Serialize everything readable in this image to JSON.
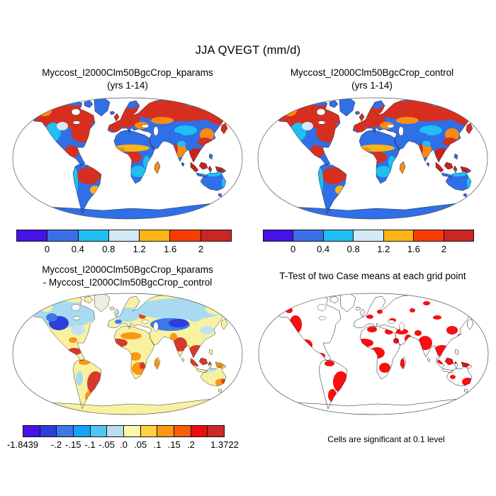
{
  "title": "JJA QVEGT (mm/d)",
  "panels": {
    "top_left": {
      "title_line1": "Myccost_I2000Clm50BgcCrop_kparams",
      "title_line2": "(yrs 1-14)"
    },
    "top_right": {
      "title_line1": "Myccost_I2000Clm50BgcCrop_control",
      "title_line2": "(yrs 1-14)"
    },
    "bottom_left": {
      "title_line1": "Myccost_I2000Clm50BgcCrop_kparams",
      "title_line2": "- Myccost_I2000Clm50BgcCrop_control"
    },
    "bottom_right": {
      "title": "T-Test of two Case means at each grid point",
      "caption": "Cells are significant at 0.1 level",
      "significant_color": "#FB0D10"
    }
  },
  "colorbars": {
    "top": {
      "colors": [
        "#4712E6",
        "#3A6FE6",
        "#20BFF2",
        "#D4E8F6",
        "#FDB515",
        "#FA3C00",
        "#CB2526"
      ],
      "tick_labels": [
        "0",
        "0.4",
        "0.8",
        "1.2",
        "1.6",
        "2"
      ],
      "tick_positions": [
        0.1429,
        0.2857,
        0.4286,
        0.5714,
        0.7143,
        0.8571
      ]
    },
    "diff": {
      "colors": [
        "#4712E6",
        "#2E3ED9",
        "#3C78E8",
        "#17A3F8",
        "#52C6F2",
        "#B9DCEF",
        "#FBF8AB",
        "#FDD440",
        "#FB9712",
        "#FA5D0C",
        "#E90E0E",
        "#CB2A2B"
      ],
      "tick_labels": [
        "-1.8439",
        "-.2",
        "-.15",
        "-.1",
        "-.05",
        ".0",
        ".05",
        ".1",
        ".15",
        ".2",
        "1.3722"
      ],
      "tick_positions": [
        0.0,
        0.1667,
        0.25,
        0.3333,
        0.4167,
        0.5,
        0.5833,
        0.6667,
        0.75,
        0.8333,
        1.0
      ]
    }
  },
  "chart_data": [
    {
      "type": "heatmap",
      "subtype": "global_map",
      "projection": "robinson",
      "title": "Myccost_I2000Clm50BgcCrop_kparams",
      "subtitle": "(yrs 1-14)",
      "variable": "QVEGT",
      "season": "JJA",
      "units": "mm/d",
      "levels": [
        0,
        0.4,
        0.8,
        1.2,
        1.6,
        2
      ],
      "palette": [
        "#4712E6",
        "#3A6FE6",
        "#20BFF2",
        "#D4E8F6",
        "#FDB515",
        "#FA3C00",
        "#CB2526"
      ],
      "legend_position": "bottom"
    },
    {
      "type": "heatmap",
      "subtype": "global_map",
      "projection": "robinson",
      "title": "Myccost_I2000Clm50BgcCrop_control",
      "subtitle": "(yrs 1-14)",
      "variable": "QVEGT",
      "season": "JJA",
      "units": "mm/d",
      "levels": [
        0,
        0.4,
        0.8,
        1.2,
        1.6,
        2
      ],
      "palette": [
        "#4712E6",
        "#3A6FE6",
        "#20BFF2",
        "#D4E8F6",
        "#FDB515",
        "#FA3C00",
        "#CB2526"
      ],
      "legend_position": "bottom"
    },
    {
      "type": "heatmap",
      "subtype": "global_map_difference",
      "projection": "robinson",
      "title": "Myccost_I2000Clm50BgcCrop_kparams - Myccost_I2000Clm50BgcCrop_control",
      "min": -1.8439,
      "max": 1.3722,
      "levels": [
        -0.2,
        -0.15,
        -0.1,
        -0.05,
        0,
        0.05,
        0.1,
        0.15,
        0.2
      ],
      "palette": [
        "#4712E6",
        "#2E3ED9",
        "#3C78E8",
        "#17A3F8",
        "#52C6F2",
        "#B9DCEF",
        "#FBF8AB",
        "#FDD440",
        "#FB9712",
        "#FA5D0C",
        "#E90E0E",
        "#CB2A2B"
      ],
      "legend_position": "bottom"
    },
    {
      "type": "heatmap",
      "subtype": "significance_mask",
      "projection": "robinson",
      "title": "T-Test of two Case means at each grid point",
      "note": "Cells are significant at 0.1 level",
      "significance_level": 0.1,
      "significant_color": "#FB0D10"
    }
  ]
}
